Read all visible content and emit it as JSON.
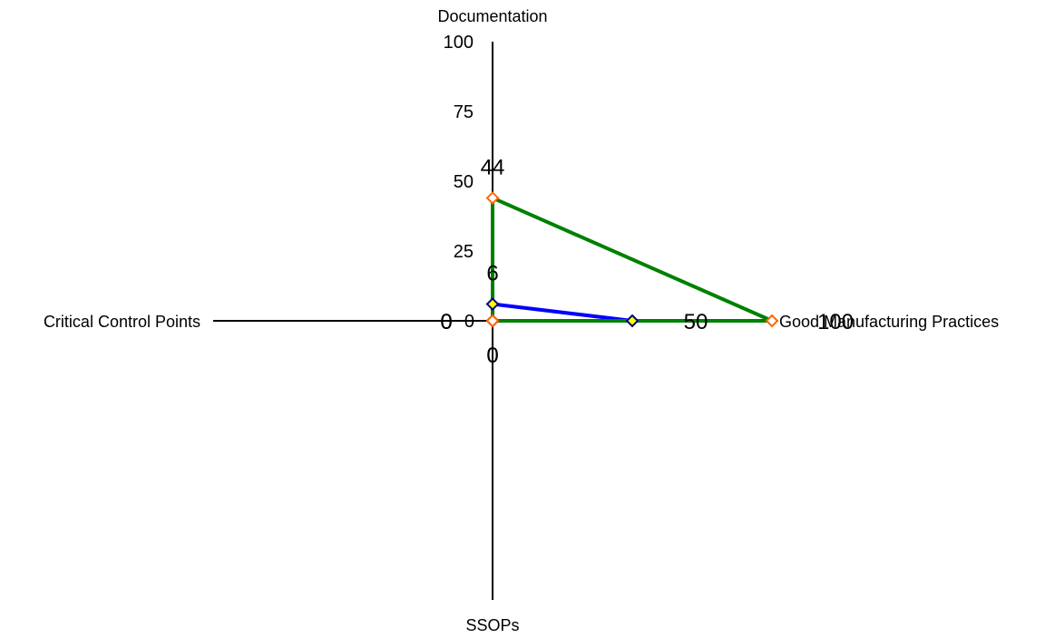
{
  "chart_data": {
    "type": "radar",
    "axes": [
      "Documentation",
      "Good Manufacturing Practices",
      "SSOPs",
      "Critical Control Points"
    ],
    "scale": {
      "min": 0,
      "max": 100,
      "ticks": [
        0,
        25,
        50,
        75,
        100
      ]
    },
    "series": [
      {
        "values": [
          6,
          50,
          0,
          0
        ],
        "color": "#0000ff",
        "marker_fill": "#ffff00",
        "marker_stroke": "#000080"
      },
      {
        "values": [
          44,
          100,
          0,
          0
        ],
        "color": "#008000",
        "marker_fill": "#ffffff",
        "marker_stroke": "#ff6600"
      }
    ],
    "grid": false,
    "legend": "none"
  }
}
